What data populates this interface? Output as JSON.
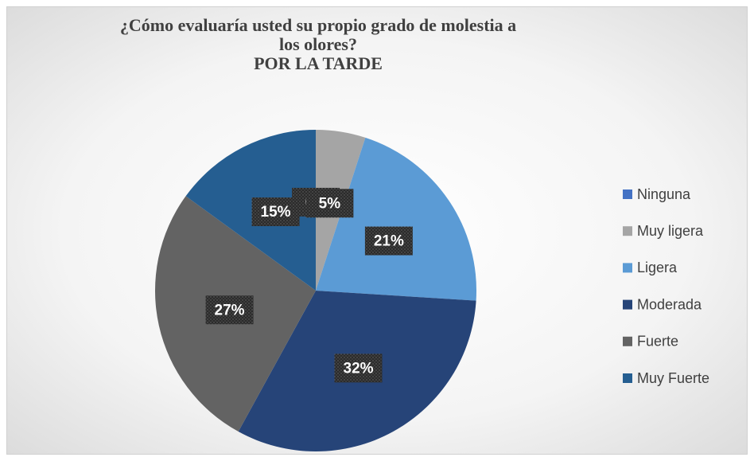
{
  "chart_data": {
    "type": "pie",
    "title": "¿Cómo evaluaría usted su propio grado de molestia a los olores?",
    "subtitle": "POR LA TARDE",
    "categories": [
      "Ninguna",
      "Muy ligera",
      "Ligera",
      "Moderada",
      "Fuerte",
      "Muy Fuerte"
    ],
    "values": [
      0,
      5,
      21,
      32,
      27,
      15
    ],
    "value_labels": [
      "0%",
      "5%",
      "21%",
      "32%",
      "27%",
      "15%"
    ],
    "colors": [
      "#4472c4",
      "#a5a5a5",
      "#5b9bd5",
      "#264478",
      "#636363",
      "#255e91"
    ],
    "legend": "right"
  }
}
